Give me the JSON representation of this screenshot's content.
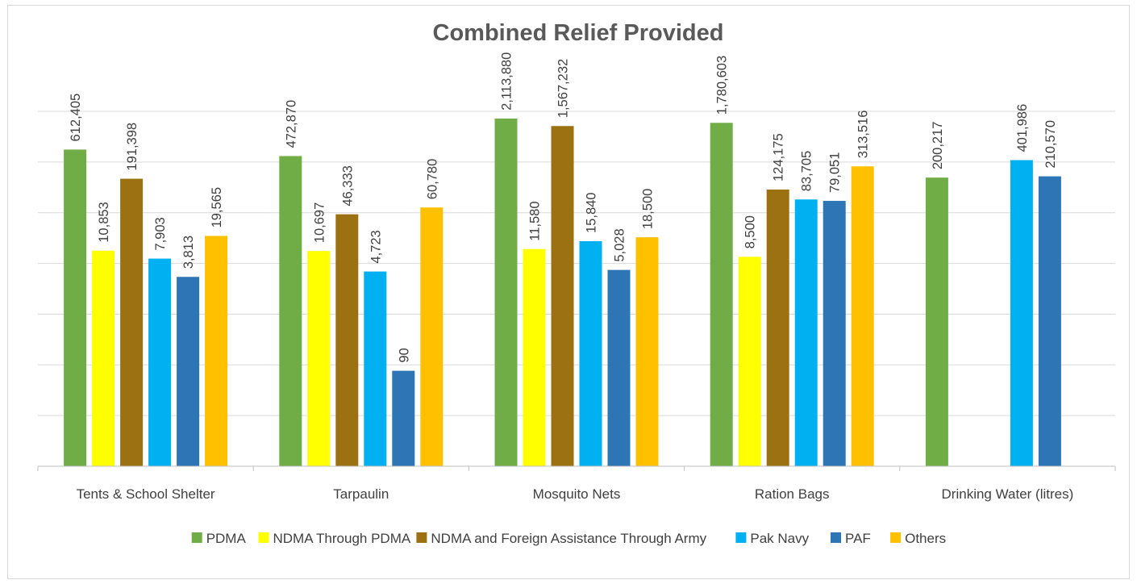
{
  "chart_data": {
    "type": "bar",
    "title": "Combined Relief Provided",
    "scale": "log",
    "grid": true,
    "legend_position": "bottom",
    "categories": [
      "Tents & School Shelter",
      "Tarpaulin",
      "Mosquito Nets",
      "Ration Bags",
      "Drinking Water (litres)"
    ],
    "series": [
      {
        "name": "PDMA",
        "color": "#70ad47",
        "values": [
          612405,
          472870,
          2113880,
          1780603,
          200217
        ]
      },
      {
        "name": "NDMA Through PDMA",
        "color": "#ffff00",
        "values": [
          10853,
          10697,
          11580,
          8500,
          null
        ]
      },
      {
        "name": "NDMA and Foreign Assistance Through Army",
        "color": "#9c7112",
        "values": [
          191398,
          46333,
          1567232,
          124175,
          null
        ]
      },
      {
        "name": "Pak Navy",
        "color": "#00b0f0",
        "values": [
          7903,
          4723,
          15840,
          83705,
          401986
        ]
      },
      {
        "name": "PAF",
        "color": "#2e75b6",
        "values": [
          3813,
          90,
          5028,
          79051,
          210570
        ]
      },
      {
        "name": "Others",
        "color": "#ffc000",
        "values": [
          19565,
          60780,
          18500,
          313516,
          null
        ]
      }
    ],
    "labels": [
      [
        "612,405",
        "10,853",
        "191,398",
        "7,903",
        "3,813",
        "19,565"
      ],
      [
        "472,870",
        "10,697",
        "46,333",
        "4,723",
        "90",
        "60,780"
      ],
      [
        "2,113,880",
        "11,580",
        "1,567,232",
        "15,840",
        "5,028",
        "18,500"
      ],
      [
        "1,780,603",
        "8,500",
        "124,175",
        "83,705",
        "79,051",
        "313,516"
      ],
      [
        "200,217",
        "",
        "",
        "401,986",
        "210,570",
        ""
      ]
    ]
  }
}
